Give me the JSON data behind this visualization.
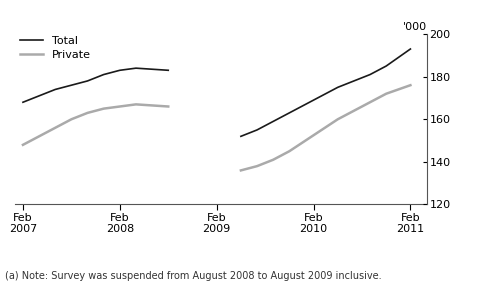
{
  "ylabel_right": "'000",
  "note": "(a) Note: Survey was suspended from August 2008 to August 2009 inclusive.",
  "legend_total": "Total",
  "legend_private": "Private",
  "total_color": "#1a1a1a",
  "private_color": "#aaaaaa",
  "ylim": [
    120,
    200
  ],
  "yticks": [
    120,
    140,
    160,
    180,
    200
  ],
  "xtick_labels": [
    "Feb\n2007",
    "Feb\n2008",
    "Feb\n2009",
    "Feb\n2010",
    "Feb\n2011"
  ],
  "xtick_positions": [
    0,
    12,
    24,
    36,
    48
  ],
  "total_seg1_x": [
    0,
    2,
    4,
    6,
    8,
    10,
    12,
    14,
    16,
    18
  ],
  "total_seg1_y": [
    168,
    171,
    174,
    176,
    178,
    181,
    183,
    184,
    183.5,
    183
  ],
  "total_seg2_x": [
    27,
    29,
    31,
    33,
    35,
    37,
    39,
    41,
    43,
    45,
    48
  ],
  "total_seg2_y": [
    152,
    155,
    159,
    163,
    167,
    171,
    175,
    178,
    181,
    185,
    193
  ],
  "private_seg1_x": [
    0,
    2,
    4,
    6,
    8,
    10,
    12,
    14,
    16,
    18
  ],
  "private_seg1_y": [
    148,
    152,
    156,
    160,
    163,
    165,
    166,
    167,
    166.5,
    166
  ],
  "private_seg2_x": [
    27,
    29,
    31,
    33,
    35,
    37,
    39,
    41,
    43,
    45,
    48
  ],
  "private_seg2_y": [
    136,
    138,
    141,
    145,
    150,
    155,
    160,
    164,
    168,
    172,
    176
  ],
  "background_color": "#ffffff",
  "total_lw": 1.2,
  "private_lw": 1.8,
  "note_fontsize": 7,
  "tick_fontsize": 8,
  "legend_fontsize": 8
}
